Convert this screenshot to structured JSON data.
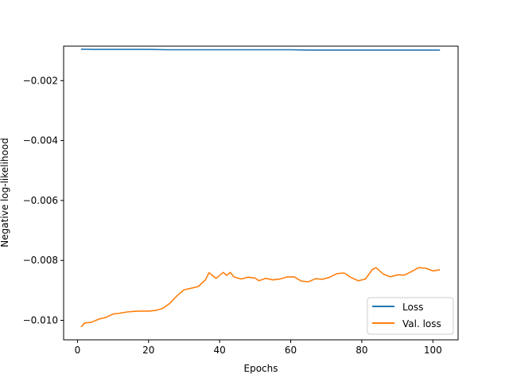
{
  "chart_data": {
    "type": "line",
    "title": "",
    "xlabel": "Epochs",
    "ylabel": "Negative log-likelihood",
    "xlim": [
      -3.9,
      107.1
    ],
    "ylim": [
      -0.01065,
      -0.00085
    ],
    "xticks": [
      0,
      20,
      40,
      60,
      80,
      100
    ],
    "xtick_labels": [
      "0",
      "20",
      "40",
      "60",
      "80",
      "100"
    ],
    "yticks": [
      -0.01,
      -0.008,
      -0.006,
      -0.004,
      -0.002
    ],
    "ytick_labels": [
      "−0.010",
      "−0.008",
      "−0.006",
      "−0.004",
      "−0.002"
    ],
    "grid": false,
    "legend_position": "lower-right",
    "series": [
      {
        "name": "Loss",
        "color": "#1f77b4",
        "x": [
          1,
          5,
          10,
          15,
          20,
          25,
          30,
          35,
          40,
          45,
          50,
          55,
          60,
          65,
          70,
          75,
          80,
          85,
          90,
          95,
          100,
          102
        ],
        "y": [
          -0.00095,
          -0.00096,
          -0.00096,
          -0.00096,
          -0.00096,
          -0.00097,
          -0.00097,
          -0.00097,
          -0.00097,
          -0.00097,
          -0.00097,
          -0.00097,
          -0.00097,
          -0.00098,
          -0.00098,
          -0.00098,
          -0.00098,
          -0.00098,
          -0.00098,
          -0.00098,
          -0.00098,
          -0.00098
        ]
      },
      {
        "name": "Val. loss",
        "color": "#ff7f0e",
        "x": [
          1,
          2,
          4,
          6,
          8,
          10,
          12,
          14,
          16,
          18,
          20,
          22,
          24,
          26,
          28,
          30,
          32,
          34,
          36,
          37,
          39,
          41,
          42,
          43,
          44,
          46,
          48,
          50,
          51,
          53,
          55,
          57,
          59,
          61,
          63,
          65,
          67,
          69,
          71,
          73,
          75,
          77,
          79,
          81,
          83,
          84,
          86,
          88,
          90,
          92,
          94,
          96,
          98,
          100,
          102
        ],
        "y": [
          -0.01022,
          -0.01009,
          -0.01006,
          -0.00996,
          -0.0099,
          -0.00979,
          -0.00976,
          -0.00972,
          -0.0097,
          -0.00969,
          -0.00969,
          -0.00967,
          -0.0096,
          -0.00943,
          -0.00918,
          -0.00898,
          -0.00893,
          -0.00887,
          -0.00865,
          -0.00841,
          -0.0086,
          -0.0084,
          -0.0085,
          -0.0084,
          -0.00855,
          -0.00862,
          -0.00856,
          -0.00859,
          -0.00868,
          -0.0086,
          -0.00865,
          -0.00862,
          -0.00855,
          -0.00855,
          -0.00869,
          -0.00871,
          -0.00861,
          -0.00863,
          -0.00856,
          -0.00844,
          -0.00842,
          -0.00857,
          -0.00868,
          -0.00862,
          -0.0083,
          -0.00824,
          -0.00845,
          -0.00855,
          -0.00848,
          -0.00849,
          -0.00837,
          -0.00824,
          -0.00826,
          -0.00835,
          -0.00831
        ]
      }
    ]
  }
}
